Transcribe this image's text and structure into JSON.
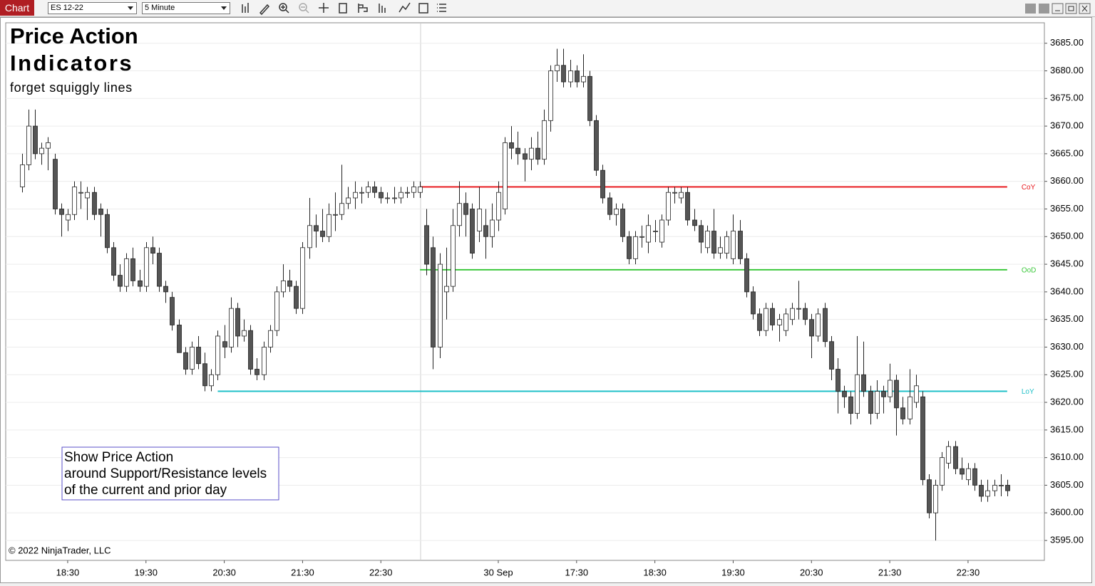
{
  "toolbar": {
    "tab": "Chart",
    "instrument": "ES 12-22",
    "interval": "5 Minute"
  },
  "chart_data": {
    "type": "candlestick",
    "title": "Price Action",
    "subtitle": "Indicators",
    "tagline": "forget squiggly lines",
    "annotation": [
      "Show Price Action",
      "around Support/Resistance levels",
      "of the current and prior day"
    ],
    "copyright": "© 2022 NinjaTrader, LLC",
    "up_color": "#ffffff",
    "down_color": "#555555",
    "xlim": [
      -2.5,
      156.7
    ],
    "ylim": [
      3591.4,
      3688.7
    ],
    "grid": true,
    "xticks": [
      {
        "value": 7,
        "label": "18:30"
      },
      {
        "value": 19,
        "label": "19:30"
      },
      {
        "value": 31,
        "label": "20:30"
      },
      {
        "value": 43,
        "label": "21:30"
      },
      {
        "value": 55,
        "label": "22:30"
      },
      {
        "value": 73,
        "label": "30 Sep"
      },
      {
        "value": 85,
        "label": "17:30"
      },
      {
        "value": 97,
        "label": "18:30"
      },
      {
        "value": 109,
        "label": "19:30"
      },
      {
        "value": 121,
        "label": "20:30"
      },
      {
        "value": 133,
        "label": "21:30"
      },
      {
        "value": 145,
        "label": "22:30"
      }
    ],
    "yticks": [
      {
        "value": 3595,
        "label": "3595.00"
      },
      {
        "value": 3600,
        "label": "3600.00"
      },
      {
        "value": 3605,
        "label": "3605.00"
      },
      {
        "value": 3610,
        "label": "3610.00"
      },
      {
        "value": 3615,
        "label": "3615.00"
      },
      {
        "value": 3620,
        "label": "3620.00"
      },
      {
        "value": 3625,
        "label": "3625.00"
      },
      {
        "value": 3630,
        "label": "3630.00"
      },
      {
        "value": 3635,
        "label": "3635.00"
      },
      {
        "value": 3640,
        "label": "3640.00"
      },
      {
        "value": 3645,
        "label": "3645.00"
      },
      {
        "value": 3650,
        "label": "3650.00"
      },
      {
        "value": 3655,
        "label": "3655.00"
      },
      {
        "value": 3660,
        "label": "3660.00"
      },
      {
        "value": 3665,
        "label": "3665.00"
      },
      {
        "value": 3670,
        "label": "3670.00"
      },
      {
        "value": 3675,
        "label": "3675.00"
      },
      {
        "value": 3680,
        "label": "3680.00"
      },
      {
        "value": 3685,
        "label": "3685.00"
      }
    ],
    "levels": [
      {
        "label": "CoY",
        "value": 3659,
        "color": "#e8191e",
        "from": 61
      },
      {
        "label": "OoD",
        "value": 3644,
        "color": "#3cc83c",
        "from": 61
      },
      {
        "label": "LoY",
        "value": 3622,
        "color": "#20c0c8",
        "from": 30
      }
    ],
    "candles": [
      [
        3659,
        3665,
        3658,
        3663
      ],
      [
        3663,
        3673,
        3662,
        3670
      ],
      [
        3670,
        3673,
        3664,
        3665
      ],
      [
        3665,
        3667,
        3663,
        3666
      ],
      [
        3666,
        3668,
        3662,
        3667
      ],
      [
        3664,
        3665,
        3654,
        3655
      ],
      [
        3655,
        3656,
        3650,
        3654
      ],
      [
        3653,
        3655,
        3651,
        3654
      ],
      [
        3654,
        3660,
        3653,
        3659
      ],
      [
        3658,
        3660,
        3655,
        3658
      ],
      [
        3657,
        3659,
        3653,
        3658
      ],
      [
        3658,
        3659,
        3653,
        3654
      ],
      [
        3655,
        3656,
        3650,
        3654
      ],
      [
        3654,
        3655,
        3647,
        3648
      ],
      [
        3648,
        3649,
        3642,
        3643
      ],
      [
        3643,
        3645,
        3640,
        3641
      ],
      [
        3641,
        3647,
        3640,
        3646
      ],
      [
        3646,
        3648,
        3641,
        3642
      ],
      [
        3642,
        3644,
        3640,
        3641
      ],
      [
        3641,
        3649,
        3640,
        3648
      ],
      [
        3648,
        3650,
        3645,
        3647
      ],
      [
        3647,
        3648,
        3640,
        3641
      ],
      [
        3641,
        3642,
        3638,
        3640
      ],
      [
        3639,
        3640,
        3633,
        3634
      ],
      [
        3634,
        3635,
        3629,
        3629
      ],
      [
        3629,
        3630,
        3625,
        3626
      ],
      [
        3626,
        3631,
        3625,
        3630
      ],
      [
        3630,
        3632,
        3626,
        3627
      ],
      [
        3627,
        3629,
        3622,
        3623
      ],
      [
        3623,
        3626,
        3622,
        3625
      ],
      [
        3625,
        3633,
        3624,
        3632
      ],
      [
        3631,
        3634,
        3628,
        3630
      ],
      [
        3630,
        3639,
        3629,
        3637
      ],
      [
        3637,
        3638,
        3630,
        3632
      ],
      [
        3632,
        3635,
        3631,
        3633
      ],
      [
        3633,
        3634,
        3625,
        3626
      ],
      [
        3626,
        3628,
        3624,
        3625
      ],
      [
        3625,
        3631,
        3624,
        3630
      ],
      [
        3630,
        3634,
        3629,
        3633
      ],
      [
        3633,
        3641,
        3632,
        3640
      ],
      [
        3640,
        3645,
        3639,
        3642
      ],
      [
        3642,
        3644,
        3640,
        3641
      ],
      [
        3641,
        3642,
        3636,
        3637
      ],
      [
        3637,
        3649,
        3636,
        3648
      ],
      [
        3648,
        3657,
        3646,
        3652
      ],
      [
        3652,
        3654,
        3648,
        3651
      ],
      [
        3651,
        3655,
        3649,
        3650
      ],
      [
        3650,
        3656,
        3649,
        3654
      ],
      [
        3654,
        3658,
        3651,
        3654
      ],
      [
        3654,
        3663,
        3653,
        3656
      ],
      [
        3656,
        3659,
        3655,
        3657
      ],
      [
        3657,
        3660,
        3655,
        3658
      ],
      [
        3658,
        3659,
        3656,
        3658
      ],
      [
        3658,
        3660,
        3657,
        3659
      ],
      [
        3659,
        3660,
        3657,
        3658
      ],
      [
        3658,
        3659,
        3656,
        3657
      ],
      [
        3657,
        3658,
        3656,
        3657
      ],
      [
        3657,
        3659,
        3656,
        3657
      ],
      [
        3657,
        3659,
        3656,
        3658
      ],
      [
        3658,
        3659,
        3657,
        3658
      ],
      [
        3658,
        3660,
        3657,
        3659
      ],
      [
        3658,
        3660,
        3657,
        3659
      ],
      [
        3652,
        3655,
        3643,
        3645
      ],
      [
        3648,
        3650,
        3626,
        3630
      ],
      [
        3630,
        3647,
        3628,
        3645
      ],
      [
        3640,
        3648,
        3635,
        3641
      ],
      [
        3641,
        3655,
        3640,
        3652
      ],
      [
        3652,
        3660,
        3650,
        3656
      ],
      [
        3656,
        3658,
        3650,
        3654
      ],
      [
        3655,
        3656,
        3646,
        3647
      ],
      [
        3651,
        3659,
        3649,
        3655
      ],
      [
        3652,
        3655,
        3646,
        3650
      ],
      [
        3650,
        3656,
        3648,
        3653
      ],
      [
        3653,
        3660,
        3651,
        3658
      ],
      [
        3655,
        3668,
        3654,
        3667
      ],
      [
        3667,
        3670,
        3664,
        3666
      ],
      [
        3666,
        3669,
        3663,
        3665
      ],
      [
        3665,
        3666,
        3660,
        3664
      ],
      [
        3664,
        3668,
        3662,
        3666
      ],
      [
        3666,
        3669,
        3663,
        3664
      ],
      [
        3664,
        3673,
        3663,
        3671
      ],
      [
        3671,
        3681,
        3669,
        3680
      ],
      [
        3680,
        3684,
        3678,
        3681
      ],
      [
        3681,
        3684,
        3677,
        3678
      ],
      [
        3678,
        3682,
        3677,
        3680
      ],
      [
        3680,
        3681,
        3677,
        3678
      ],
      [
        3678,
        3683,
        3677,
        3679
      ],
      [
        3679,
        3680,
        3670,
        3671
      ],
      [
        3671,
        3672,
        3661,
        3662
      ],
      [
        3662,
        3663,
        3656,
        3657
      ],
      [
        3657,
        3658,
        3653,
        3654
      ],
      [
        3654,
        3656,
        3652,
        3655
      ],
      [
        3655,
        3656,
        3649,
        3650
      ],
      [
        3650,
        3651,
        3645,
        3646
      ],
      [
        3646,
        3651,
        3645,
        3650
      ],
      [
        3650,
        3652,
        3648,
        3650
      ],
      [
        3649,
        3654,
        3647,
        3652
      ],
      [
        3651,
        3653,
        3649,
        3651
      ],
      [
        3649,
        3654,
        3648,
        3653
      ],
      [
        3653,
        3659,
        3652,
        3658
      ],
      [
        3658,
        3659,
        3656,
        3658
      ],
      [
        3657,
        3659,
        3656,
        3658
      ],
      [
        3658,
        3659,
        3652,
        3653
      ],
      [
        3653,
        3655,
        3651,
        3652
      ],
      [
        3652,
        3653,
        3647,
        3649
      ],
      [
        3648,
        3652,
        3647,
        3651
      ],
      [
        3651,
        3655,
        3646,
        3647
      ],
      [
        3647,
        3650,
        3646,
        3648
      ],
      [
        3647,
        3651,
        3646,
        3650
      ],
      [
        3646,
        3654,
        3645,
        3651
      ],
      [
        3651,
        3653,
        3645,
        3646
      ],
      [
        3646,
        3647,
        3639,
        3640
      ],
      [
        3640,
        3641,
        3635,
        3636
      ],
      [
        3636,
        3637,
        3632,
        3633
      ],
      [
        3633,
        3638,
        3632,
        3637
      ],
      [
        3637,
        3638,
        3633,
        3634
      ],
      [
        3634,
        3636,
        3631,
        3635
      ],
      [
        3633,
        3637,
        3632,
        3636
      ],
      [
        3635,
        3638,
        3634,
        3637
      ],
      [
        3637,
        3642,
        3635,
        3637
      ],
      [
        3637,
        3638,
        3634,
        3635
      ],
      [
        3635,
        3636,
        3628,
        3632
      ],
      [
        3632,
        3637,
        3631,
        3636
      ],
      [
        3637,
        3638,
        3630,
        3631
      ],
      [
        3631,
        3632,
        3624,
        3626
      ],
      [
        3626,
        3628,
        3618,
        3622
      ],
      [
        3622,
        3623,
        3619,
        3621
      ],
      [
        3621,
        3622,
        3616,
        3618
      ],
      [
        3618,
        3632,
        3617,
        3625
      ],
      [
        3625,
        3631,
        3621,
        3622
      ],
      [
        3622,
        3623,
        3616,
        3618
      ],
      [
        3618,
        3624,
        3617,
        3622
      ],
      [
        3622,
        3623,
        3618,
        3621
      ],
      [
        3621,
        3627,
        3620,
        3624
      ],
      [
        3624,
        3625,
        3614,
        3619
      ],
      [
        3619,
        3621,
        3616,
        3617
      ],
      [
        3617,
        3626,
        3616,
        3621
      ],
      [
        3620,
        3625,
        3619,
        3623
      ],
      [
        3621,
        3622,
        3605,
        3606
      ],
      [
        3606,
        3607,
        3599,
        3600
      ],
      [
        3600,
        3606,
        3595,
        3605
      ],
      [
        3605,
        3611,
        3604,
        3610
      ],
      [
        3609,
        3613,
        3608,
        3612
      ],
      [
        3612,
        3613,
        3607,
        3608
      ],
      [
        3608,
        3610,
        3606,
        3607
      ],
      [
        3606,
        3609,
        3605,
        3608
      ],
      [
        3608,
        3609,
        3604,
        3605
      ],
      [
        3605,
        3606,
        3602,
        3603
      ],
      [
        3603,
        3606,
        3602,
        3604
      ],
      [
        3604,
        3606,
        3603,
        3605
      ],
      [
        3605,
        3607,
        3603,
        3605
      ],
      [
        3605,
        3606,
        3603,
        3604
      ]
    ]
  }
}
